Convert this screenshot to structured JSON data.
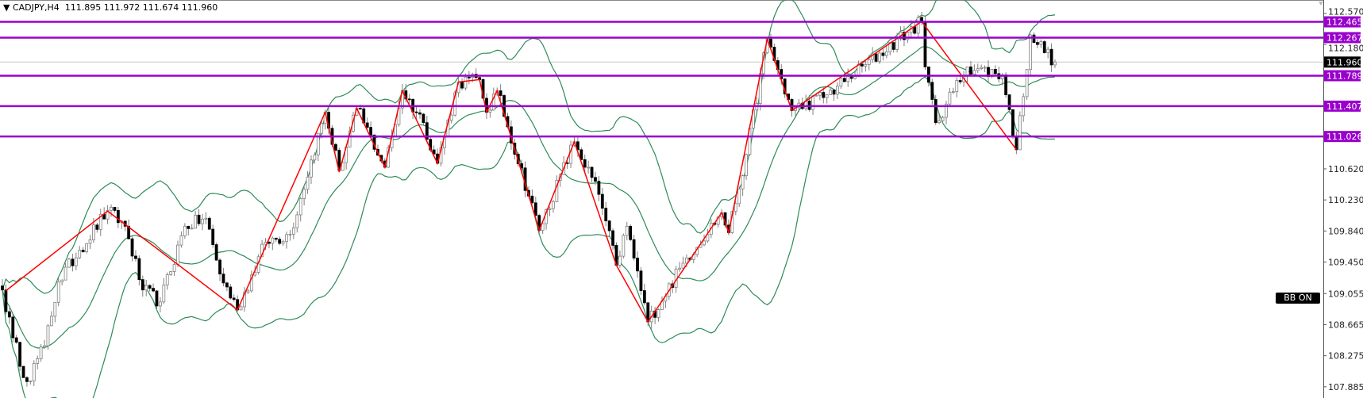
{
  "header": {
    "menu_icon": "triangle-down-icon",
    "symbol": "CADJPY,H4",
    "ohlc": "111.895 111.972 111.674 111.960"
  },
  "bb_button": {
    "label": "BB ON"
  },
  "colors": {
    "levels": "#9900cc",
    "zigzag": "#ff0000",
    "bollinger": "#2e8b57",
    "current_price_box": "#000000",
    "candle_up_body": "#ffffff",
    "candle_down_body": "#000000",
    "candle_wick": "#808080"
  },
  "chart_data": {
    "type": "candlestick",
    "symbol": "CADJPY",
    "timeframe": "H4",
    "ylim": [
      107.8,
      112.74
    ],
    "y_ticks": [
      "112.570",
      "112.180",
      "110.620",
      "110.230",
      "109.840",
      "109.450",
      "109.055",
      "108.665",
      "108.275",
      "107.885"
    ],
    "current_price": "111.960",
    "horizontal_levels": [
      "112.465",
      "112.267",
      "111.789",
      "111.407",
      "111.026"
    ],
    "bar_count": 301,
    "price_path": [
      [
        0,
        109.1
      ],
      [
        3,
        108.5
      ],
      [
        7,
        107.95
      ],
      [
        12,
        108.4
      ],
      [
        16,
        109.2
      ],
      [
        22,
        109.6
      ],
      [
        30,
        110.1
      ],
      [
        35,
        109.9
      ],
      [
        40,
        109.1
      ],
      [
        45,
        108.95
      ],
      [
        52,
        109.9
      ],
      [
        58,
        110.0
      ],
      [
        62,
        109.3
      ],
      [
        67,
        108.85
      ],
      [
        75,
        109.7
      ],
      [
        82,
        109.8
      ],
      [
        92,
        111.33
      ],
      [
        96,
        110.6
      ],
      [
        101,
        111.38
      ],
      [
        109,
        110.64
      ],
      [
        114,
        111.6
      ],
      [
        120,
        111.2
      ],
      [
        124,
        110.69
      ],
      [
        130,
        111.71
      ],
      [
        136,
        111.74
      ],
      [
        138,
        111.33
      ],
      [
        141,
        111.6
      ],
      [
        153,
        109.85
      ],
      [
        163,
        110.96
      ],
      [
        170,
        110.3
      ],
      [
        175,
        109.41
      ],
      [
        178,
        109.9
      ],
      [
        184,
        108.7
      ],
      [
        195,
        109.5
      ],
      [
        205,
        110.07
      ],
      [
        207,
        109.82
      ],
      [
        212,
        110.8
      ],
      [
        218,
        112.25
      ],
      [
        225,
        111.35
      ],
      [
        235,
        111.55
      ],
      [
        262,
        112.47
      ],
      [
        263,
        111.9
      ],
      [
        266,
        111.2
      ],
      [
        275,
        111.9
      ],
      [
        285,
        111.8
      ],
      [
        289,
        110.86
      ],
      [
        293,
        112.3
      ],
      [
        300,
        111.96
      ]
    ],
    "zigzag": [
      [
        1,
        109.09
      ],
      [
        30,
        110.09
      ],
      [
        67,
        108.85
      ],
      [
        92,
        111.33
      ],
      [
        96,
        110.58
      ],
      [
        101,
        111.38
      ],
      [
        109,
        110.64
      ],
      [
        114,
        111.6
      ],
      [
        124,
        110.69
      ],
      [
        130,
        111.71
      ],
      [
        136,
        111.74
      ],
      [
        138,
        111.33
      ],
      [
        141,
        111.6
      ],
      [
        153,
        109.85
      ],
      [
        163,
        110.96
      ],
      [
        175,
        109.41
      ],
      [
        184,
        108.7
      ],
      [
        205,
        110.07
      ],
      [
        207,
        109.82
      ],
      [
        218,
        112.25
      ],
      [
        225,
        111.35
      ],
      [
        262,
        112.47
      ],
      [
        289,
        110.86
      ]
    ],
    "bollinger": {
      "period": 20,
      "deviation": 2
    }
  }
}
